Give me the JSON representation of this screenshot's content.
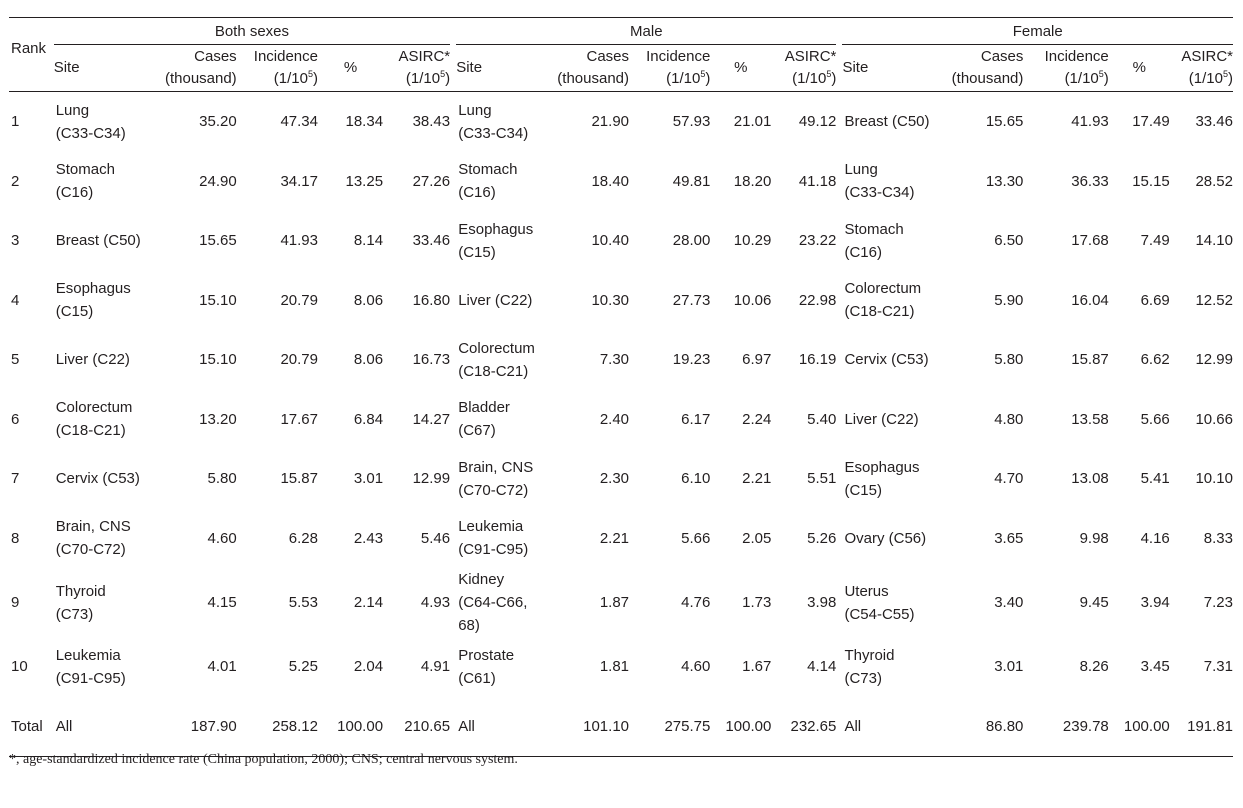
{
  "groups": [
    "Both sexes",
    "Male",
    "Female"
  ],
  "headers": {
    "rank": "Rank",
    "site": "Site",
    "cases_line1": "Cases",
    "cases_line2": "(thousand)",
    "incidence_line1": "Incidence",
    "incidence_line2": "(1/10",
    "incidence_exp": "5",
    "percent": "%",
    "asirc_line1": "ASIRC*",
    "asirc_line2": "(1/10",
    "asirc_exp": "5"
  },
  "rows": [
    {
      "rank": "1",
      "both": {
        "site": [
          "Lung",
          "(C33-C34)"
        ],
        "cases": "35.20",
        "incidence": "47.34",
        "pct": "18.34",
        "asirc": "38.43"
      },
      "male": {
        "site": [
          "Lung",
          "(C33-C34)"
        ],
        "cases": "21.90",
        "incidence": "57.93",
        "pct": "21.01",
        "asirc": "49.12"
      },
      "female": {
        "site": [
          "Breast (C50)"
        ],
        "cases": "15.65",
        "incidence": "41.93",
        "pct": "17.49",
        "asirc": "33.46"
      }
    },
    {
      "rank": "2",
      "both": {
        "site": [
          "Stomach",
          "(C16)"
        ],
        "cases": "24.90",
        "incidence": "34.17",
        "pct": "13.25",
        "asirc": "27.26"
      },
      "male": {
        "site": [
          "Stomach",
          "(C16)"
        ],
        "cases": "18.40",
        "incidence": "49.81",
        "pct": "18.20",
        "asirc": "41.18"
      },
      "female": {
        "site": [
          "Lung",
          "(C33-C34)"
        ],
        "cases": "13.30",
        "incidence": "36.33",
        "pct": "15.15",
        "asirc": "28.52"
      }
    },
    {
      "rank": "3",
      "both": {
        "site": [
          "Breast (C50)"
        ],
        "cases": "15.65",
        "incidence": "41.93",
        "pct": "8.14",
        "asirc": "33.46"
      },
      "male": {
        "site": [
          "Esophagus",
          "(C15)"
        ],
        "cases": "10.40",
        "incidence": "28.00",
        "pct": "10.29",
        "asirc": "23.22"
      },
      "female": {
        "site": [
          "Stomach",
          "(C16)"
        ],
        "cases": "6.50",
        "incidence": "17.68",
        "pct": "7.49",
        "asirc": "14.10"
      }
    },
    {
      "rank": "4",
      "both": {
        "site": [
          "Esophagus",
          "(C15)"
        ],
        "cases": "15.10",
        "incidence": "20.79",
        "pct": "8.06",
        "asirc": "16.80"
      },
      "male": {
        "site": [
          "Liver (C22)"
        ],
        "cases": "10.30",
        "incidence": "27.73",
        "pct": "10.06",
        "asirc": "22.98"
      },
      "female": {
        "site": [
          "Colorectum",
          "(C18-C21)"
        ],
        "cases": "5.90",
        "incidence": "16.04",
        "pct": "6.69",
        "asirc": "12.52"
      }
    },
    {
      "rank": "5",
      "both": {
        "site": [
          "Liver (C22)"
        ],
        "cases": "15.10",
        "incidence": "20.79",
        "pct": "8.06",
        "asirc": "16.73"
      },
      "male": {
        "site": [
          "Colorectum",
          "(C18-C21)"
        ],
        "cases": "7.30",
        "incidence": "19.23",
        "pct": "6.97",
        "asirc": "16.19"
      },
      "female": {
        "site": [
          "Cervix (C53)"
        ],
        "cases": "5.80",
        "incidence": "15.87",
        "pct": "6.62",
        "asirc": "12.99"
      }
    },
    {
      "rank": "6",
      "both": {
        "site": [
          "Colorectum",
          "(C18-C21)"
        ],
        "cases": "13.20",
        "incidence": "17.67",
        "pct": "6.84",
        "asirc": "14.27"
      },
      "male": {
        "site": [
          "Bladder",
          "(C67)"
        ],
        "cases": "2.40",
        "incidence": "6.17",
        "pct": "2.24",
        "asirc": "5.40"
      },
      "female": {
        "site": [
          "Liver (C22)"
        ],
        "cases": "4.80",
        "incidence": "13.58",
        "pct": "5.66",
        "asirc": "10.66"
      }
    },
    {
      "rank": "7",
      "both": {
        "site": [
          "Cervix (C53)"
        ],
        "cases": "5.80",
        "incidence": "15.87",
        "pct": "3.01",
        "asirc": "12.99"
      },
      "male": {
        "site": [
          "Brain, CNS",
          "(C70-C72)"
        ],
        "cases": "2.30",
        "incidence": "6.10",
        "pct": "2.21",
        "asirc": "5.51"
      },
      "female": {
        "site": [
          "Esophagus",
          "(C15)"
        ],
        "cases": "4.70",
        "incidence": "13.08",
        "pct": "5.41",
        "asirc": "10.10"
      }
    },
    {
      "rank": "8",
      "both": {
        "site": [
          "Brain, CNS",
          "(C70-C72)"
        ],
        "cases": "4.60",
        "incidence": "6.28",
        "pct": "2.43",
        "asirc": "5.46"
      },
      "male": {
        "site": [
          "Leukemia",
          "(C91-C95)"
        ],
        "cases": "2.21",
        "incidence": "5.66",
        "pct": "2.05",
        "asirc": "5.26"
      },
      "female": {
        "site": [
          "Ovary (C56)"
        ],
        "cases": "3.65",
        "incidence": "9.98",
        "pct": "4.16",
        "asirc": "8.33"
      }
    },
    {
      "rank": "9",
      "both": {
        "site": [
          "Thyroid",
          "(C73)"
        ],
        "cases": "4.15",
        "incidence": "5.53",
        "pct": "2.14",
        "asirc": "4.93"
      },
      "male": {
        "site": [
          "Kidney",
          "(C64-C66,",
          "68)"
        ],
        "cases": "1.87",
        "incidence": "4.76",
        "pct": "1.73",
        "asirc": "3.98"
      },
      "female": {
        "site": [
          "Uterus",
          "(C54-C55)"
        ],
        "cases": "3.40",
        "incidence": "9.45",
        "pct": "3.94",
        "asirc": "7.23"
      }
    },
    {
      "rank": "10",
      "both": {
        "site": [
          "Leukemia",
          "(C91-C95)"
        ],
        "cases": "4.01",
        "incidence": "5.25",
        "pct": "2.04",
        "asirc": "4.91"
      },
      "male": {
        "site": [
          "Prostate",
          "(C61)"
        ],
        "cases": "1.81",
        "incidence": "4.60",
        "pct": "1.67",
        "asirc": "4.14"
      },
      "female": {
        "site": [
          "Thyroid",
          "(C73)"
        ],
        "cases": "3.01",
        "incidence": "8.26",
        "pct": "3.45",
        "asirc": "7.31"
      }
    }
  ],
  "total": {
    "rank": "Total",
    "both": {
      "site": "All",
      "cases": "187.90",
      "incidence": "258.12",
      "pct": "100.00",
      "asirc": "210.65"
    },
    "male": {
      "site": "All",
      "cases": "101.10",
      "incidence": "275.75",
      "pct": "100.00",
      "asirc": "232.65"
    },
    "female": {
      "site": "All",
      "cases": "86.80",
      "incidence": "239.78",
      "pct": "100.00",
      "asirc": "191.81"
    }
  },
  "footnote": "*, age-standardized incidence rate (China population, 2000); CNS; central nervous system."
}
